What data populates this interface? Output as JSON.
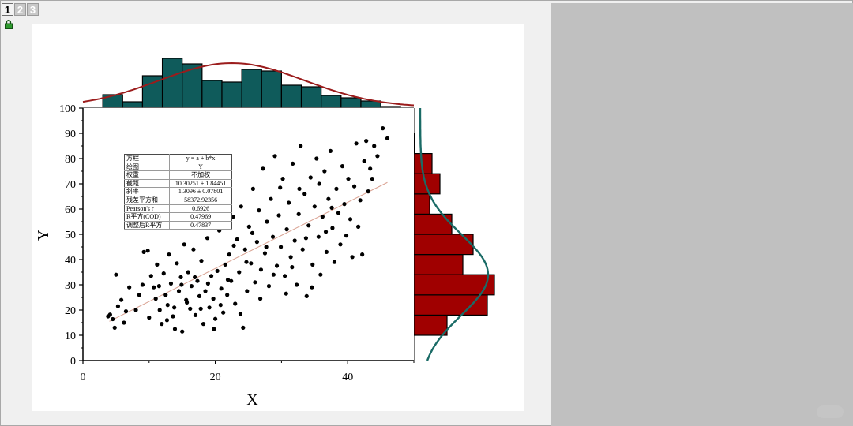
{
  "window": {
    "tabs": [
      "1",
      "2",
      "3"
    ],
    "active_tab": "1",
    "lock_icon": "lock-icon"
  },
  "colors": {
    "top_hist_fill": "#0f5b5b",
    "top_hist_curve": "#9b1c1c",
    "right_hist_fill": "#a00000",
    "right_hist_curve": "#1a6b66",
    "points": "#000000",
    "fit_line": "#d9a090"
  },
  "fit_table": [
    {
      "label": "方程",
      "value": "y = a + b*x"
    },
    {
      "label": "绘图",
      "value": "Y"
    },
    {
      "label": "权重",
      "value": "不加权"
    },
    {
      "label": "截距",
      "value": "10.30251 ± 1.84451"
    },
    {
      "label": "斜率",
      "value": "1.3096 ± 0.07801"
    },
    {
      "label": "残差平方和",
      "value": "58372.92356"
    },
    {
      "label": "Pearson's r",
      "value": "0.6926"
    },
    {
      "label": "R平方(COD)",
      "value": "0.47969"
    },
    {
      "label": "调整后R平方",
      "value": "0.47837"
    }
  ],
  "chart_data": [
    {
      "type": "scatter",
      "title": "",
      "xlabel": "X",
      "ylabel": "Y",
      "xlim": [
        0,
        50
      ],
      "ylim": [
        0,
        100
      ],
      "xticks": [
        0,
        20,
        40
      ],
      "yticks": [
        0,
        10,
        20,
        30,
        40,
        50,
        60,
        70,
        80,
        90,
        100
      ],
      "fit_line": {
        "intercept": 10.30251,
        "slope": 1.3096,
        "x_range": [
          4,
          46
        ]
      },
      "points": [
        [
          4.1,
          18.2
        ],
        [
          4.5,
          16.4
        ],
        [
          5.0,
          34.0
        ],
        [
          5.3,
          21.5
        ],
        [
          5.8,
          24.0
        ],
        [
          6.2,
          15.0
        ],
        [
          7.0,
          29.0
        ],
        [
          3.8,
          17.5
        ],
        [
          4.8,
          13.0
        ],
        [
          6.5,
          19.5
        ],
        [
          8.5,
          26.0
        ],
        [
          9.2,
          43.0
        ],
        [
          9.8,
          43.5
        ],
        [
          10.3,
          33.5
        ],
        [
          10.7,
          29.0
        ],
        [
          11.0,
          24.5
        ],
        [
          11.2,
          38.0
        ],
        [
          11.6,
          20.0
        ],
        [
          11.9,
          14.5
        ],
        [
          12.2,
          34.5
        ],
        [
          12.5,
          26.0
        ],
        [
          12.8,
          22.0
        ],
        [
          13.0,
          42.0
        ],
        [
          13.3,
          30.5
        ],
        [
          13.6,
          17.5
        ],
        [
          13.9,
          12.5
        ],
        [
          14.2,
          38.5
        ],
        [
          14.5,
          27.5
        ],
        [
          14.8,
          33.0
        ],
        [
          15.0,
          11.5
        ],
        [
          15.3,
          46.0
        ],
        [
          15.6,
          24.0
        ],
        [
          15.9,
          35.0
        ],
        [
          16.2,
          20.5
        ],
        [
          16.4,
          29.5
        ],
        [
          16.7,
          44.0
        ],
        [
          17.0,
          18.0
        ],
        [
          17.3,
          31.5
        ],
        [
          17.6,
          25.5
        ],
        [
          17.9,
          39.5
        ],
        [
          18.2,
          14.5
        ],
        [
          18.5,
          27.5
        ],
        [
          18.8,
          48.5
        ],
        [
          19.1,
          21.0
        ],
        [
          19.4,
          33.5
        ],
        [
          19.7,
          24.5
        ],
        [
          20.0,
          16.5
        ],
        [
          20.3,
          35.5
        ],
        [
          20.6,
          51.5
        ],
        [
          20.9,
          28.5
        ],
        [
          21.2,
          19.0
        ],
        [
          21.5,
          38.0
        ],
        [
          21.8,
          26.0
        ],
        [
          22.1,
          42.0
        ],
        [
          22.4,
          31.5
        ],
        [
          22.7,
          57.0
        ],
        [
          23.0,
          22.5
        ],
        [
          23.3,
          48.0
        ],
        [
          23.6,
          35.0
        ],
        [
          23.9,
          61.0
        ],
        [
          24.2,
          13.0
        ],
        [
          24.5,
          44.0
        ],
        [
          24.8,
          27.5
        ],
        [
          25.1,
          53.0
        ],
        [
          25.4,
          38.5
        ],
        [
          25.7,
          68.0
        ],
        [
          26.0,
          31.0
        ],
        [
          26.3,
          47.0
        ],
        [
          26.6,
          59.5
        ],
        [
          26.9,
          36.0
        ],
        [
          27.2,
          76.0
        ],
        [
          27.5,
          42.5
        ],
        [
          27.8,
          55.0
        ],
        [
          28.1,
          29.5
        ],
        [
          28.4,
          64.0
        ],
        [
          28.7,
          49.0
        ],
        [
          29.0,
          81.0
        ],
        [
          29.3,
          37.5
        ],
        [
          29.6,
          57.5
        ],
        [
          29.9,
          45.0
        ],
        [
          30.2,
          72.0
        ],
        [
          30.5,
          33.5
        ],
        [
          30.8,
          52.0
        ],
        [
          31.1,
          62.5
        ],
        [
          31.4,
          41.0
        ],
        [
          31.7,
          78.0
        ],
        [
          32.0,
          47.5
        ],
        [
          32.3,
          30.0
        ],
        [
          32.6,
          58.0
        ],
        [
          32.9,
          85.0
        ],
        [
          33.2,
          44.0
        ],
        [
          33.5,
          66.0
        ],
        [
          33.8,
          25.5
        ],
        [
          34.1,
          53.5
        ],
        [
          34.4,
          72.5
        ],
        [
          34.7,
          38.0
        ],
        [
          35.0,
          61.0
        ],
        [
          35.3,
          80.0
        ],
        [
          35.6,
          49.0
        ],
        [
          35.9,
          34.0
        ],
        [
          36.2,
          57.0
        ],
        [
          36.5,
          75.0
        ],
        [
          36.8,
          43.0
        ],
        [
          37.1,
          64.0
        ],
        [
          37.4,
          83.0
        ],
        [
          37.7,
          52.5
        ],
        [
          38.0,
          39.0
        ],
        [
          38.3,
          68.0
        ],
        [
          38.6,
          58.5
        ],
        [
          38.9,
          46.0
        ],
        [
          39.2,
          77.0
        ],
        [
          39.5,
          62.0
        ],
        [
          39.8,
          49.5
        ],
        [
          40.1,
          72.0
        ],
        [
          40.4,
          56.0
        ],
        [
          40.7,
          41.0
        ],
        [
          41.0,
          69.0
        ],
        [
          41.3,
          86.0
        ],
        [
          41.6,
          53.0
        ],
        [
          41.9,
          63.5
        ],
        [
          42.2,
          42.0
        ],
        [
          42.5,
          79.0
        ],
        [
          42.8,
          87.0
        ],
        [
          43.1,
          67.0
        ],
        [
          43.4,
          76.0
        ],
        [
          43.7,
          72.0
        ],
        [
          44.0,
          85.0
        ],
        [
          44.5,
          81.0
        ],
        [
          45.3,
          92.0
        ],
        [
          46.0,
          88.0
        ],
        [
          8.0,
          20.0
        ],
        [
          9.0,
          30.0
        ],
        [
          10.0,
          17.0
        ],
        [
          11.5,
          29.5
        ],
        [
          12.7,
          16.0
        ],
        [
          13.8,
          21.0
        ],
        [
          14.9,
          30.0
        ],
        [
          15.7,
          23.0
        ],
        [
          16.9,
          33.0
        ],
        [
          17.8,
          20.5
        ],
        [
          18.9,
          30.5
        ],
        [
          19.8,
          12.5
        ],
        [
          20.8,
          22.0
        ],
        [
          21.9,
          32.0
        ],
        [
          22.8,
          45.5
        ],
        [
          23.8,
          18.5
        ],
        [
          24.7,
          39.0
        ],
        [
          25.6,
          50.5
        ],
        [
          26.8,
          24.5
        ],
        [
          27.7,
          45.0
        ],
        [
          28.8,
          34.0
        ],
        [
          29.8,
          68.5
        ],
        [
          30.7,
          26.5
        ],
        [
          31.6,
          37.0
        ],
        [
          32.7,
          68.0
        ],
        [
          33.7,
          48.5
        ],
        [
          34.6,
          29.0
        ],
        [
          35.7,
          70.0
        ],
        [
          36.7,
          51.0
        ],
        [
          37.6,
          60.5
        ]
      ]
    },
    {
      "type": "bar",
      "title": "",
      "orientation": "vertical",
      "bin_edges": [
        3,
        6,
        9,
        12,
        15,
        18,
        21,
        24,
        27,
        30,
        33,
        36,
        39,
        42,
        45,
        48
      ],
      "values": [
        16,
        7,
        40,
        62,
        55,
        34,
        32,
        48,
        46,
        28,
        26,
        15,
        12,
        8,
        1
      ],
      "curve": {
        "mean": 22.5,
        "sd": 11,
        "peak": 56
      }
    },
    {
      "type": "bar",
      "title": "",
      "orientation": "horizontal",
      "bin_edges": [
        10,
        18,
        26,
        34,
        42,
        50,
        58,
        66,
        74,
        82,
        90
      ],
      "values": [
        42,
        93,
        102,
        62,
        75,
        48,
        20,
        33,
        23,
        1
      ],
      "curve": {
        "mean": 34,
        "sd": 16,
        "peak": 86
      }
    }
  ]
}
